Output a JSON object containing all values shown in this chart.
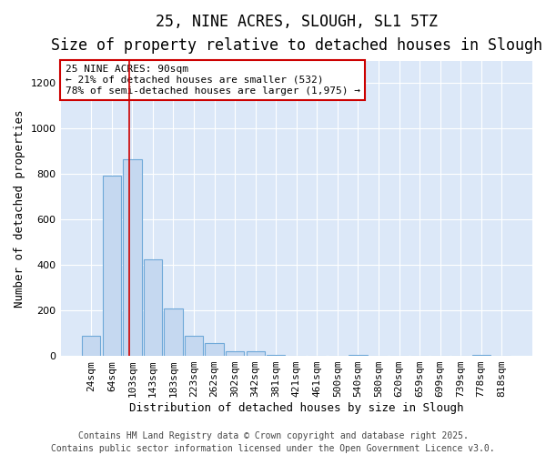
{
  "title_line1": "25, NINE ACRES, SLOUGH, SL1 5TZ",
  "title_line2": "Size of property relative to detached houses in Slough",
  "xlabel": "Distribution of detached houses by size in Slough",
  "ylabel": "Number of detached properties",
  "categories": [
    "24sqm",
    "64sqm",
    "103sqm",
    "143sqm",
    "183sqm",
    "223sqm",
    "262sqm",
    "302sqm",
    "342sqm",
    "381sqm",
    "421sqm",
    "461sqm",
    "500sqm",
    "540sqm",
    "580sqm",
    "620sqm",
    "659sqm",
    "699sqm",
    "739sqm",
    "778sqm",
    "818sqm"
  ],
  "values": [
    90,
    795,
    865,
    425,
    210,
    90,
    55,
    20,
    20,
    5,
    0,
    0,
    0,
    5,
    0,
    0,
    0,
    0,
    0,
    5,
    0
  ],
  "bar_color": "#c5d8f0",
  "bar_edge_color": "#6ea8d8",
  "vline_x": 1.85,
  "vline_color": "#cc0000",
  "annotation_text": "25 NINE ACRES: 90sqm\n← 21% of detached houses are smaller (532)\n78% of semi-detached houses are larger (1,975) →",
  "annotation_box_color": "#cc0000",
  "ylim": [
    0,
    1300
  ],
  "yticks": [
    0,
    200,
    400,
    600,
    800,
    1000,
    1200
  ],
  "footer_line1": "Contains HM Land Registry data © Crown copyright and database right 2025.",
  "footer_line2": "Contains public sector information licensed under the Open Government Licence v3.0.",
  "bg_color": "#dce8f8",
  "fig_color": "#ffffff",
  "grid_color": "#ffffff",
  "title_fontsize": 12,
  "subtitle_fontsize": 10,
  "axis_label_fontsize": 9,
  "tick_fontsize": 8,
  "footer_fontsize": 7,
  "annotation_fontsize": 8
}
